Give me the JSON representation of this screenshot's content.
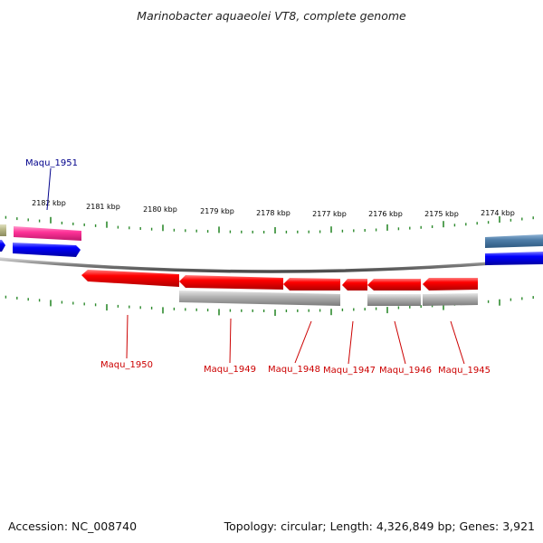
{
  "title": "Marinobacter aquaeolei VT8, complete genome",
  "footer": {
    "accession": "Accession: NC_008740",
    "summary": "Topology: circular; Length: 4,326,849 bp; Genes: 3,921"
  },
  "colors": {
    "forward_gene": "#0000ee",
    "reverse_gene": "#ee0000",
    "highlight_gene": "#ff3399",
    "rna_gene": "#b9b98a",
    "cds_grey": "#aaaaaa",
    "steel_gene": "#4f7ea8",
    "ruler_ticks": "#2e8b2e",
    "backbone": "#777777",
    "label_forward": "#00008b",
    "label_reverse": "#cc0000"
  },
  "ruler_labels": [
    "2182 kbp",
    "2181 kbp",
    "2180 kbp",
    "2179 kbp",
    "2178 kbp",
    "2177 kbp",
    "2176 kbp",
    "2175 kbp",
    "2174 kbp"
  ],
  "gene_labels": {
    "forward": [
      "Maqu_1951"
    ],
    "reverse": [
      "Maqu_1950",
      "Maqu_1949",
      "Maqu_1948",
      "Maqu_1947",
      "Maqu_1946",
      "Maqu_1945"
    ]
  }
}
